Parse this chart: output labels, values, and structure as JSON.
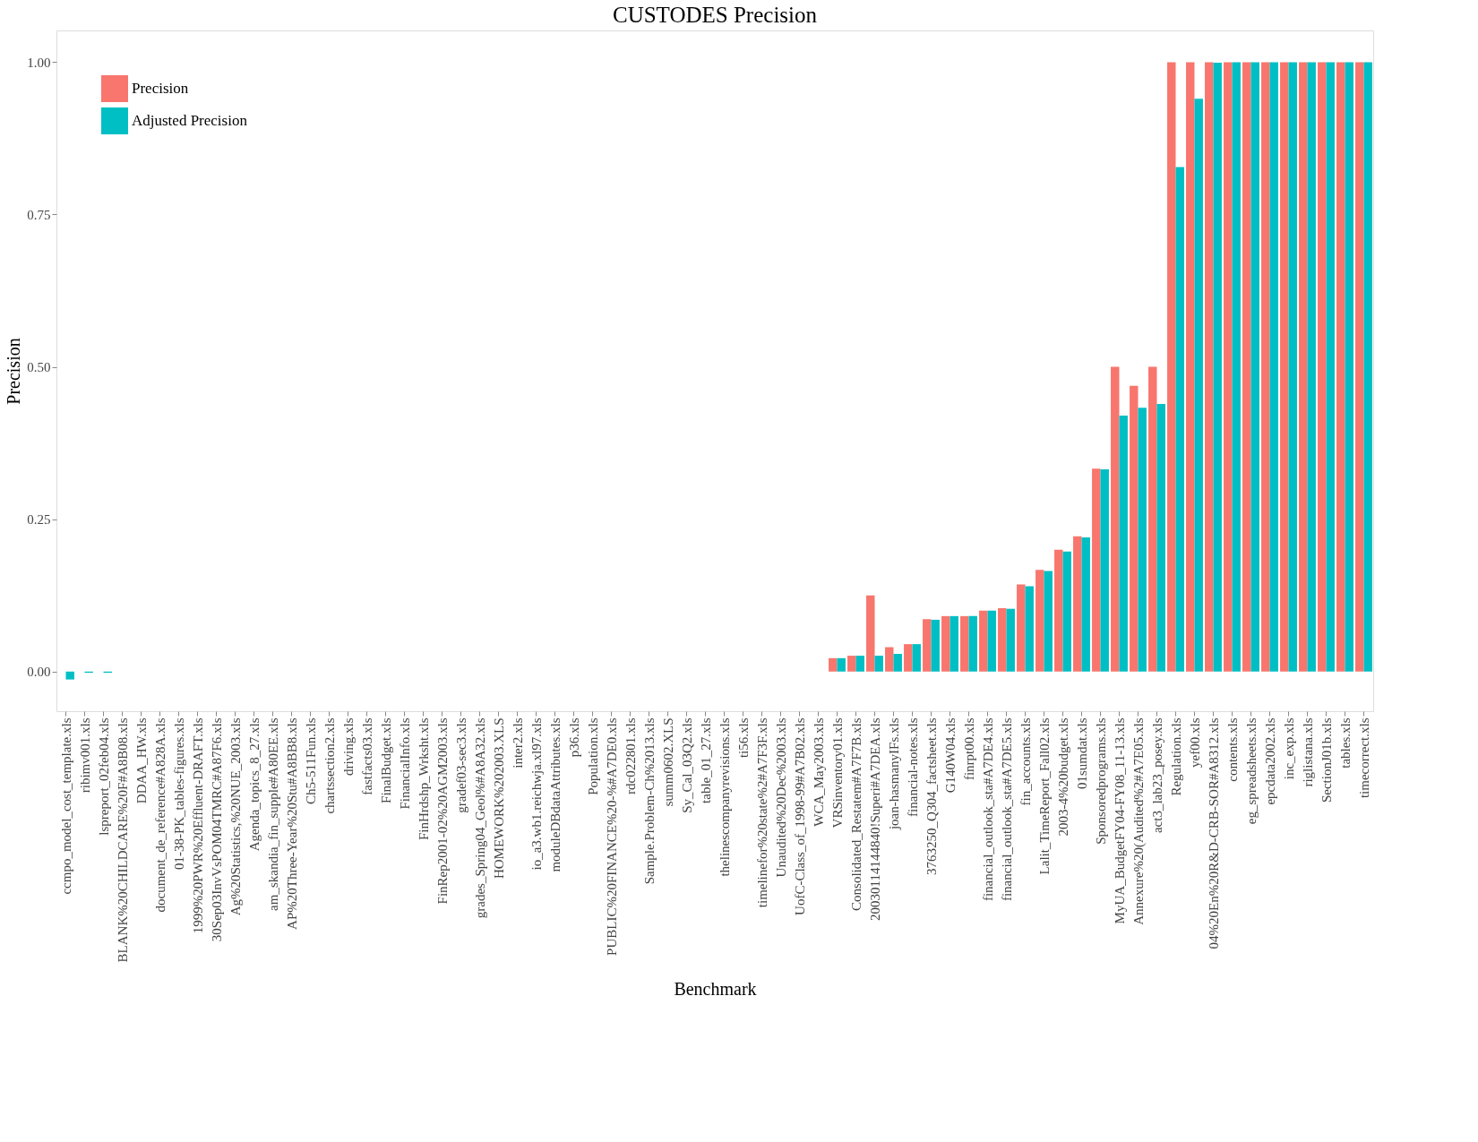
{
  "chart_data": {
    "type": "bar",
    "title": "CUSTODES Precision",
    "xlabel": "Benchmark",
    "ylabel": "Precision",
    "categories": [
      "ccmpo_model_cost_template.xls",
      "ribimv001.xls",
      "lspreport_02feb04.xls",
      "BLANK%20CHILDCARE%20F#A8B08.xls",
      "DDAA_HW.xls",
      "document_de_reference#A828A.xls",
      "01-38-PK_tables-figures.xls",
      "1999%20PWR%20Effluent-DRAFT.xls",
      "30Sep03InvVsPOM04TMRC#A87F6.xls",
      "Ag%20Statistics,%20NUE_2003.xls",
      "Agenda_topics_8_27.xls",
      "am_skandia_fin_supple#A80EE.xls",
      "AP%20Three-Year%20Stu#A8BB8.xls",
      "Ch5-511Fun.xls",
      "chartssection2.xls",
      "driving.xls",
      "fastfacts03.xls",
      "FinalBudget.xls",
      "FinancialInfo.xls",
      "FinHrdshp_Wrksht.xls",
      "FinRep2001-02%20AGM2003.xls",
      "gradef03-sec3.xls",
      "grades_Spring04_Geol%#A8A32.xls",
      "HOMEWORK%202003.XLS",
      "inter2.xls",
      "io_a3.wb1.reichwja.xl97.xls",
      "moduleDBdataAttributes.xls",
      "p36.xls",
      "Population.xls",
      "PUBLIC%20FINANCE%20-%#A7DE0.xls",
      "rdc022801.xls",
      "Sample.Problem-Ch%2013.xls",
      "summ0602.XLS",
      "Sy_Cal_03Q2.xls",
      "table_01_27.xls",
      "thelinescompanyrevisions.xls",
      "ti56.xls",
      "timelinefor%20state%2#A7F3F.xls",
      "Unaudited%20Dec%2003.xls",
      "UofC-Class_of_1998-99#A7B02.xls",
      "WCA_May2003.xls",
      "VRSinventory01.xls",
      "Consolidated_Restatem#A7F7B.xls",
      "20030114144840!Superi#A7DEA.xls",
      "joan-hasmanyIFs.xls",
      "financial-notes.xls",
      "3763250_Q304_factsheet.xls",
      "G140W04.xls",
      "finrpt00.xls",
      "financial_outlook_sta#A7DE4.xls",
      "financial_outlook_sta#A7DE5.xls",
      "fin_accounts.xls",
      "Lalit_TimeReport_Fall02.xls",
      "2003-4%20budget.xls",
      "01sumdat.xls",
      "Sponsoredprograms.xls",
      "MyUA_BudgetFY04-FY08_11-13.xls",
      "Annexure%20(Audited%2#A7E05.xls",
      "act3_lab23_posey.xls",
      "Regulation.xls",
      "yef00.xls",
      "04%20En%20R&D-CRB-SOR#A8312.xls",
      "contents.xls",
      "eg_spreadsheets.xls",
      "epcdata2002.xls",
      "inc_exp.xls",
      "riglistana.xls",
      "SectionJ01b.xls",
      "tables.xls",
      "timecorrect.xls"
    ],
    "series": [
      {
        "name": "Precision",
        "color": "#f8766d",
        "values": [
          0,
          0,
          0,
          0,
          0,
          0,
          0,
          0,
          0,
          0,
          0,
          0,
          0,
          0,
          0,
          0,
          0,
          0,
          0,
          0,
          0,
          0,
          0,
          0,
          0,
          0,
          0,
          0,
          0,
          0,
          0,
          0,
          0,
          0,
          0,
          0,
          0,
          0,
          0,
          0,
          0,
          0.022,
          0.026,
          0.125,
          0.04,
          0.045,
          0.086,
          0.091,
          0.091,
          0.1,
          0.104,
          0.143,
          0.167,
          0.2,
          0.222,
          0.333,
          0.5,
          0.469,
          0.5,
          1,
          1,
          1,
          1,
          1,
          1,
          1,
          1,
          1,
          1,
          1
        ]
      },
      {
        "name": "Adjusted Precision",
        "color": "#00bfc4",
        "values": [
          -0.013,
          -0.002,
          -0.002,
          null,
          null,
          null,
          0,
          0,
          0,
          0,
          0,
          0,
          0,
          0,
          0,
          0,
          0,
          0,
          0,
          0,
          0,
          0,
          0,
          0,
          0,
          0,
          0,
          0,
          0,
          0,
          0,
          0,
          0,
          0,
          0,
          0,
          0,
          0,
          0,
          0,
          0,
          0.022,
          0.026,
          0.026,
          0.029,
          0.045,
          0.085,
          0.091,
          0.091,
          0.1,
          0.103,
          0.14,
          0.165,
          0.197,
          0.22,
          0.332,
          0.42,
          0.433,
          0.439,
          0.828,
          0.94,
          0.999,
          1,
          1,
          1,
          1,
          1,
          1,
          1,
          1
        ]
      }
    ],
    "ylim": [
      -0.065,
      1.052
    ],
    "yticks": [
      {
        "value": 0,
        "label": "0.00"
      },
      0.25,
      {
        "value": 0.5,
        "label": "0.50"
      },
      0.75,
      {
        "value": 1,
        "label": "1.00"
      }
    ],
    "grid": false,
    "legend": "top left"
  }
}
